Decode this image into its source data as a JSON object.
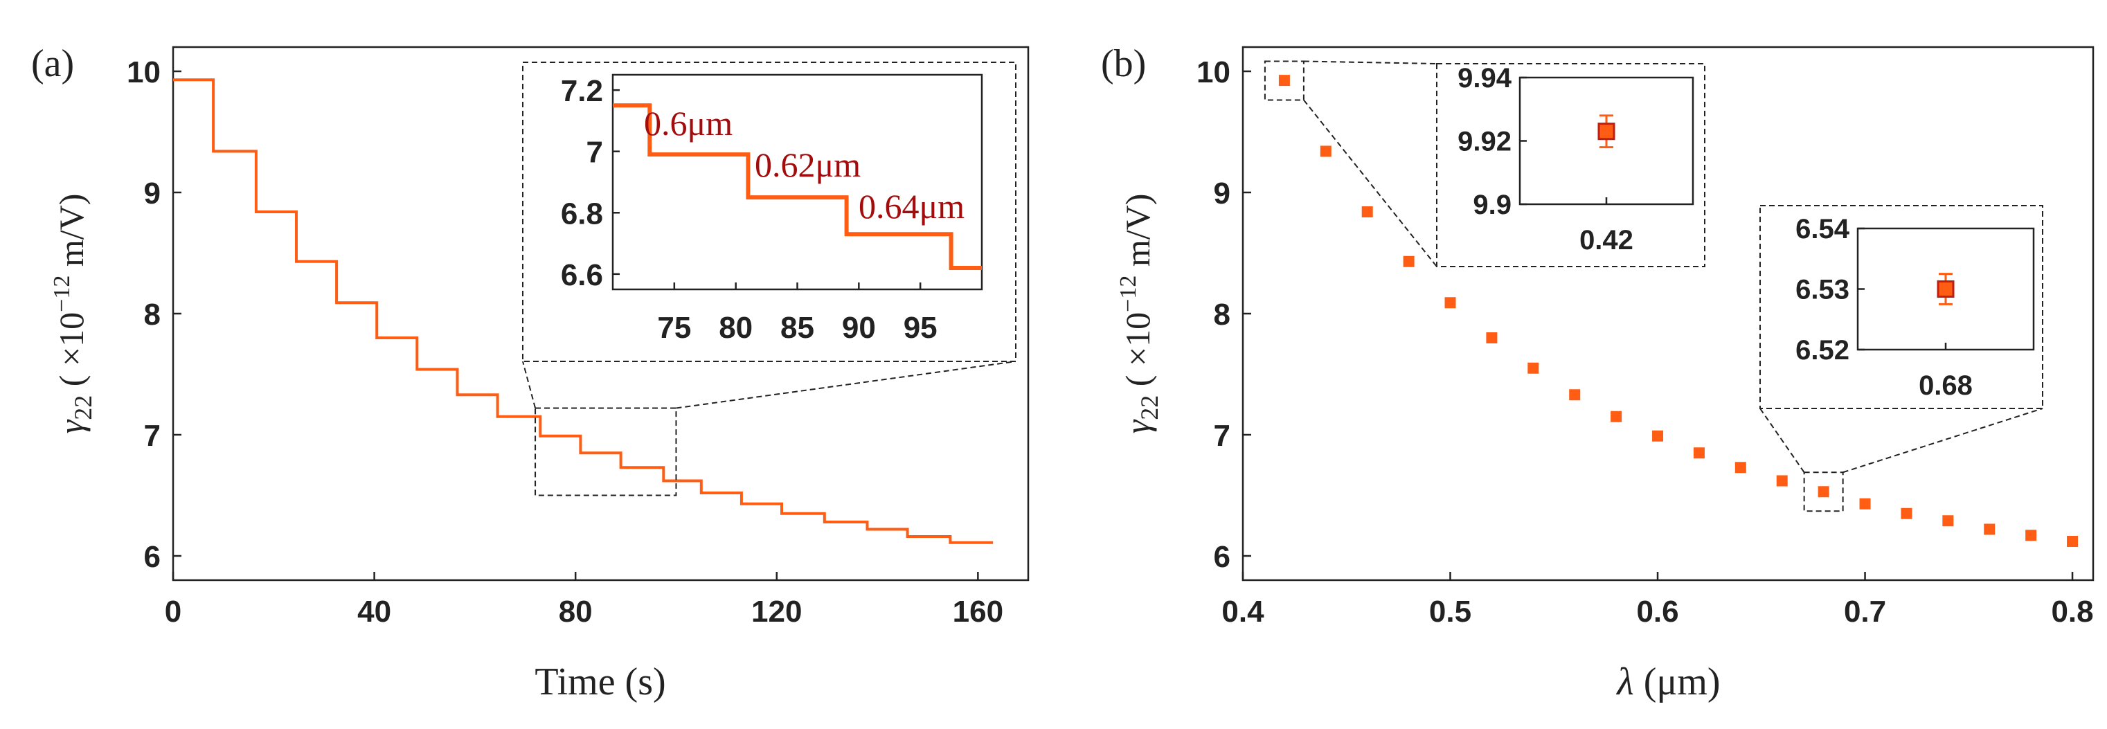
{
  "colors": {
    "series": "#ff5d13",
    "marker_edge": "#c01e10",
    "annotation": "#a20c0c",
    "axis": "#222222"
  },
  "chart_data": [
    {
      "panel_label": "(a)",
      "type": "line",
      "title": "",
      "xlabel": "Time (s)",
      "ylabel_symbol": "γ",
      "ylabel_sub": "22",
      "ylabel_unit_pre": " ( ×10",
      "ylabel_exp": "−12",
      "ylabel_unit_post": " m/V)",
      "xlim": [
        0,
        170
      ],
      "ylim": [
        5.8,
        10.2
      ],
      "xticks": [
        0,
        40,
        80,
        120,
        160
      ],
      "yticks": [
        6,
        7,
        8,
        9,
        10
      ],
      "xtick_labels": [
        "0",
        "40",
        "80",
        "120",
        "160"
      ],
      "ytick_labels": [
        "6",
        "7",
        "8",
        "9",
        "10"
      ],
      "steps": [
        {
          "t_start": 0,
          "t_end": 8,
          "value": 9.93
        },
        {
          "t_start": 8,
          "t_end": 16.5,
          "value": 9.34
        },
        {
          "t_start": 16.5,
          "t_end": 24.5,
          "value": 8.84
        },
        {
          "t_start": 24.5,
          "t_end": 32.5,
          "value": 8.43
        },
        {
          "t_start": 32.5,
          "t_end": 40.5,
          "value": 8.09
        },
        {
          "t_start": 40.5,
          "t_end": 48.5,
          "value": 7.8
        },
        {
          "t_start": 48.5,
          "t_end": 56.5,
          "value": 7.54
        },
        {
          "t_start": 56.5,
          "t_end": 64.5,
          "value": 7.33
        },
        {
          "t_start": 64.5,
          "t_end": 73,
          "value": 7.15
        },
        {
          "t_start": 73,
          "t_end": 81,
          "value": 6.99
        },
        {
          "t_start": 81,
          "t_end": 89,
          "value": 6.85
        },
        {
          "t_start": 89,
          "t_end": 97.5,
          "value": 6.73
        },
        {
          "t_start": 97.5,
          "t_end": 105,
          "value": 6.62
        },
        {
          "t_start": 105,
          "t_end": 113,
          "value": 6.52
        },
        {
          "t_start": 113,
          "t_end": 121,
          "value": 6.43
        },
        {
          "t_start": 121,
          "t_end": 129.5,
          "value": 6.35
        },
        {
          "t_start": 129.5,
          "t_end": 138,
          "value": 6.28
        },
        {
          "t_start": 138,
          "t_end": 146,
          "value": 6.22
        },
        {
          "t_start": 146,
          "t_end": 154.5,
          "value": 6.16
        },
        {
          "t_start": 154.5,
          "t_end": 163,
          "value": 6.11
        }
      ],
      "zoom_box": {
        "xlim": [
          72,
          100
        ],
        "ylim": [
          6.5,
          7.22
        ]
      },
      "inset": {
        "xlim": [
          70,
          100
        ],
        "ylim": [
          6.55,
          7.25
        ],
        "xticks": [
          75,
          80,
          85,
          90,
          95
        ],
        "yticks": [
          6.6,
          6.8,
          7,
          7.2
        ],
        "xtick_labels": [
          "75",
          "80",
          "85",
          "90",
          "95"
        ],
        "ytick_labels": [
          "6.6",
          "6.8",
          "7",
          "7.2"
        ],
        "annotations": [
          "0.6μm",
          "0.62μm",
          "0.64μm"
        ]
      }
    },
    {
      "panel_label": "(b)",
      "type": "scatter",
      "title": "",
      "xlabel_symbol": "λ",
      "xlabel_unit": " (μm)",
      "ylabel_symbol": "γ",
      "ylabel_sub": "22",
      "ylabel_unit_pre": " ( ×10",
      "ylabel_exp": "−12",
      "ylabel_unit_post": " m/V)",
      "xlim": [
        0.4,
        0.81
      ],
      "ylim": [
        5.8,
        10.2
      ],
      "xticks": [
        0.4,
        0.5,
        0.6,
        0.7,
        0.8
      ],
      "yticks": [
        6,
        7,
        8,
        9,
        10
      ],
      "xtick_labels": [
        "0.4",
        "0.5",
        "0.6",
        "0.7",
        "0.8"
      ],
      "ytick_labels": [
        "6",
        "7",
        "8",
        "9",
        "10"
      ],
      "x": [
        0.42,
        0.44,
        0.46,
        0.48,
        0.5,
        0.52,
        0.54,
        0.56,
        0.58,
        0.6,
        0.62,
        0.64,
        0.66,
        0.68,
        0.7,
        0.72,
        0.74,
        0.76,
        0.78,
        0.8
      ],
      "y": [
        9.925,
        9.34,
        8.84,
        8.43,
        8.09,
        7.8,
        7.55,
        7.33,
        7.15,
        6.99,
        6.85,
        6.73,
        6.62,
        6.53,
        6.43,
        6.35,
        6.29,
        6.22,
        6.17,
        6.12
      ],
      "insets": [
        {
          "center_x": 0.42,
          "ylim": [
            9.9,
            9.94
          ],
          "yticks": [
            9.9,
            9.92,
            9.94
          ],
          "ytick_labels": [
            "9.9",
            "9.92",
            "9.94"
          ],
          "xtick_label": "0.42",
          "value": 9.923,
          "error": 0.005
        },
        {
          "center_x": 0.68,
          "ylim": [
            6.52,
            6.54
          ],
          "yticks": [
            6.52,
            6.53,
            6.54
          ],
          "ytick_labels": [
            "6.52",
            "6.53",
            "6.54"
          ],
          "xtick_label": "0.68",
          "value": 6.53,
          "error": 0.0025
        }
      ]
    }
  ]
}
